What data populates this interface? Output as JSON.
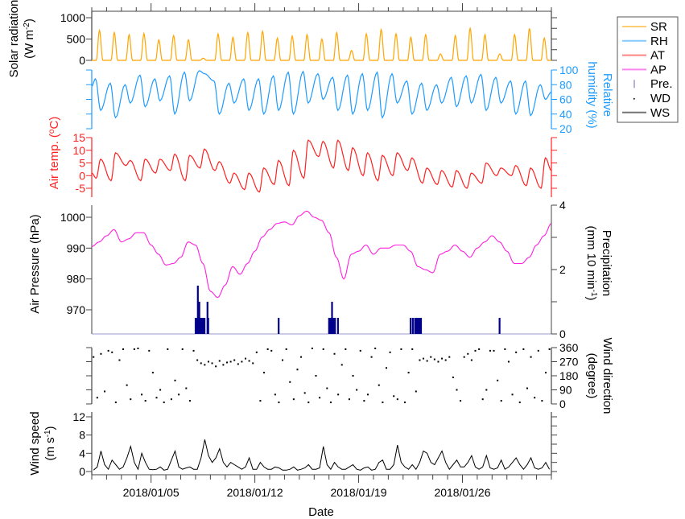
{
  "chart_data": {
    "type": "line",
    "title": "",
    "xlabel": "Date",
    "x_range_days": [
      0,
      31
    ],
    "x_ticks": [
      {
        "day": 4,
        "label": "2018/01/05"
      },
      {
        "day": 11,
        "label": "2018/01/12"
      },
      {
        "day": 18,
        "label": "2018/01/19"
      },
      {
        "day": 25,
        "label": "2018/01/26"
      }
    ],
    "legend": {
      "placement": "top-right",
      "entries": [
        {
          "label": "SR",
          "color": "#FFA500",
          "kind": "line"
        },
        {
          "label": "RH",
          "color": "#1E9BFF",
          "kind": "line"
        },
        {
          "label": "AT",
          "color": "#FF2020",
          "kind": "line"
        },
        {
          "label": "AP",
          "color": "#FF20E0",
          "kind": "line"
        },
        {
          "label": "Pre.",
          "color": "#00008B",
          "kind": "bar"
        },
        {
          "label": "WD",
          "color": "#000000",
          "kind": "dot"
        },
        {
          "label": "WS",
          "color": "#000000",
          "kind": "line"
        }
      ]
    },
    "panels": {
      "sr": {
        "ylabel1": "Solar radiation",
        "ylabel2": "(W m",
        "ylabel_sup": "-2",
        "ylabel_end": ")",
        "ylim": [
          0,
          1000
        ],
        "ticks": [
          "0",
          "500",
          "1000"
        ],
        "color": "#FFA500",
        "daily_peak": [
          700,
          650,
          600,
          630,
          480,
          580,
          480,
          50,
          620,
          540,
          650,
          680,
          520,
          570,
          600,
          500,
          650,
          230,
          620,
          720,
          620,
          540,
          600,
          150,
          580,
          750,
          600,
          150,
          600,
          750,
          520
        ]
      },
      "rh": {
        "ylabel1": "Relative",
        "ylabel2": "humidity (%)",
        "ylim": [
          20,
          100
        ],
        "ticks": [
          "20",
          "40",
          "60",
          "80",
          "100"
        ],
        "color": "#1E9BFF",
        "daily_min": [
          45,
          35,
          55,
          50,
          58,
          40,
          58,
          95,
          40,
          55,
          45,
          40,
          45,
          40,
          55,
          60,
          45,
          40,
          45,
          35,
          55,
          40,
          45,
          55,
          50,
          55,
          45,
          55,
          40,
          38,
          60
        ],
        "daily_max": [
          88,
          82,
          80,
          93,
          88,
          92,
          97,
          99,
          85,
          82,
          88,
          88,
          92,
          97,
          98,
          95,
          90,
          93,
          95,
          97,
          95,
          85,
          82,
          80,
          90,
          92,
          94,
          90,
          85,
          85,
          80
        ]
      },
      "at": {
        "ylabel1": "Air temp. (",
        "ylabel_sup": "o",
        "ylabel_end": "C)",
        "ylim": [
          -8,
          15
        ],
        "ticks": [
          "-5",
          "0",
          "5",
          "10",
          "15"
        ],
        "color": "#FF2020",
        "daily_min": [
          -1,
          -2,
          4,
          -2,
          1,
          2,
          -2,
          3,
          2,
          -3,
          -5.5,
          -6.5,
          -3.5,
          -4,
          -1,
          7.5,
          3,
          2,
          0,
          -2,
          0,
          2,
          -3,
          -3.5,
          -4.5,
          -5,
          -3,
          0,
          0,
          -4,
          -5
        ],
        "daily_max": [
          6.5,
          9,
          6,
          6.5,
          6.5,
          8.5,
          8,
          10.5,
          5.5,
          1,
          1,
          3,
          6,
          10,
          14,
          13.5,
          14,
          11,
          9,
          8,
          9,
          7,
          3,
          2,
          2,
          1,
          5,
          3,
          4,
          3,
          7
        ]
      },
      "ap": {
        "ylabel": "Air Pressure (hPa)",
        "ylim": [
          963,
          1004
        ],
        "ticks": [
          "970",
          "980",
          "990",
          "1000"
        ],
        "color": "#FF20E0",
        "values_12h": [
          990.5,
          992,
          994,
          996,
          992,
          993,
          995,
          995,
          991,
          988,
          984.5,
          985,
          987,
          992,
          991,
          985,
          976,
          974,
          978,
          984,
          981.5,
          985,
          989,
          993.6,
          996,
          998,
          998.5,
          997.5,
          1000.5,
          1002,
          1000,
          999,
          995,
          987,
          980,
          988,
          989,
          991,
          988,
          990,
          990,
          991,
          991,
          989,
          984,
          983,
          982,
          988,
          989,
          991,
          989,
          987,
          990,
          992,
          994,
          992,
          989,
          985,
          985,
          987,
          991,
          994,
          998
        ]
      },
      "pre": {
        "ylabel1": "Precipitation",
        "ylabel2": "(mm 10 min",
        "ylabel_sup": "-1",
        "ylabel_end": ")",
        "ylim": [
          0,
          4
        ],
        "ticks": [
          "0",
          "2",
          "4"
        ],
        "color": "#00008B",
        "events": [
          [
            7.0,
            0.5
          ],
          [
            7.05,
            0.5
          ],
          [
            7.1,
            0.5
          ],
          [
            7.15,
            1.5
          ],
          [
            7.2,
            0.5
          ],
          [
            7.25,
            1.0
          ],
          [
            7.3,
            0.5
          ],
          [
            7.4,
            0.5
          ],
          [
            7.5,
            0.5
          ],
          [
            7.6,
            0.5
          ],
          [
            7.8,
            1.0
          ],
          [
            7.85,
            0.5
          ],
          [
            12.6,
            0.5
          ],
          [
            16.0,
            0.5
          ],
          [
            16.05,
            0.5
          ],
          [
            16.1,
            0.5
          ],
          [
            16.15,
            0.5
          ],
          [
            16.2,
            1.0
          ],
          [
            16.3,
            0.5
          ],
          [
            16.4,
            0.5
          ],
          [
            16.6,
            0.5
          ],
          [
            21.5,
            0.5
          ],
          [
            21.65,
            0.5
          ],
          [
            21.8,
            0.5
          ],
          [
            21.9,
            0.5
          ],
          [
            22.0,
            0.5
          ],
          [
            22.1,
            0.5
          ],
          [
            22.2,
            0.5
          ],
          [
            27.5,
            0.5
          ]
        ]
      },
      "wd": {
        "ylabel1": "Wind direction",
        "ylabel2": "(degree)",
        "ylim": [
          0,
          360
        ],
        "ticks": [
          "0",
          "90",
          "180",
          "270",
          "360"
        ],
        "color": "#000000",
        "values_6h": [
          300,
          40,
          320,
          80,
          340,
          330,
          10,
          280,
          350,
          120,
          30,
          350,
          355,
          60,
          20,
          340,
          200,
          40,
          90,
          10,
          350,
          30,
          150,
          60,
          350,
          100,
          20,
          340,
          280,
          260,
          250,
          270,
          260,
          240,
          275,
          250,
          265,
          270,
          280,
          255,
          270,
          290,
          275,
          260,
          330,
          20,
          200,
          350,
          340,
          60,
          10,
          280,
          350,
          140,
          30,
          220,
          300,
          70,
          10,
          355,
          180,
          40,
          350,
          100,
          10,
          320,
          60,
          250,
          350,
          30,
          180,
          90,
          340,
          20,
          60,
          300,
          355,
          120,
          10,
          230,
          330,
          50,
          30,
          350,
          10,
          200,
          350,
          80,
          280,
          290,
          275,
          300,
          285,
          270,
          290,
          280,
          300,
          170,
          90,
          20,
          300,
          320,
          280,
          340,
          350,
          30,
          90,
          340,
          340,
          150,
          20,
          350,
          270,
          60,
          330,
          10,
          350,
          100,
          300,
          40,
          340,
          20,
          200,
          350
        ]
      },
      "ws": {
        "ylabel1": "Wind speed",
        "ylabel2": "(m s",
        "ylabel_sup": "-1",
        "ylabel_end": ")",
        "ylim": [
          0,
          12
        ],
        "ticks": [
          "0",
          "4",
          "8",
          "12"
        ],
        "color": "#000000",
        "values_6h": [
          0.3,
          1,
          4.5,
          1.5,
          0.5,
          2.5,
          1.5,
          0.5,
          1,
          3,
          5.5,
          2,
          0.5,
          4,
          2,
          0.5,
          0.4,
          0.5,
          1,
          0.3,
          0.5,
          2.5,
          4.5,
          1,
          0.5,
          0.8,
          1,
          0.5,
          0.5,
          3,
          7,
          3.5,
          2,
          3,
          5,
          2,
          1,
          2,
          1.5,
          1,
          0.5,
          1,
          3,
          0.5,
          0.5,
          2,
          1,
          0.5,
          0.5,
          1,
          0.8,
          0.3,
          0.3,
          0.5,
          1,
          0.3,
          0.5,
          0.8,
          1.5,
          0.5,
          0.5,
          0.8,
          5.5,
          1.5,
          0.5,
          2,
          1,
          0.5,
          0.5,
          1,
          1.5,
          0.5,
          0.3,
          0.8,
          1,
          0.3,
          0.5,
          2,
          2.5,
          0.5,
          0.5,
          1.5,
          5.8,
          2,
          1,
          0.5,
          1.5,
          0.5,
          2,
          4.5,
          4,
          2,
          1.5,
          3,
          4.5,
          2,
          0.5,
          1.5,
          2.5,
          1,
          1,
          2,
          3.5,
          1,
          0.5,
          1,
          3.5,
          0.8,
          0.5,
          0.8,
          2.5,
          0.5,
          1,
          2,
          3,
          1.5,
          0.5,
          1.5,
          3,
          0.8,
          0.5,
          0.8,
          2,
          0.5
        ]
      }
    }
  }
}
